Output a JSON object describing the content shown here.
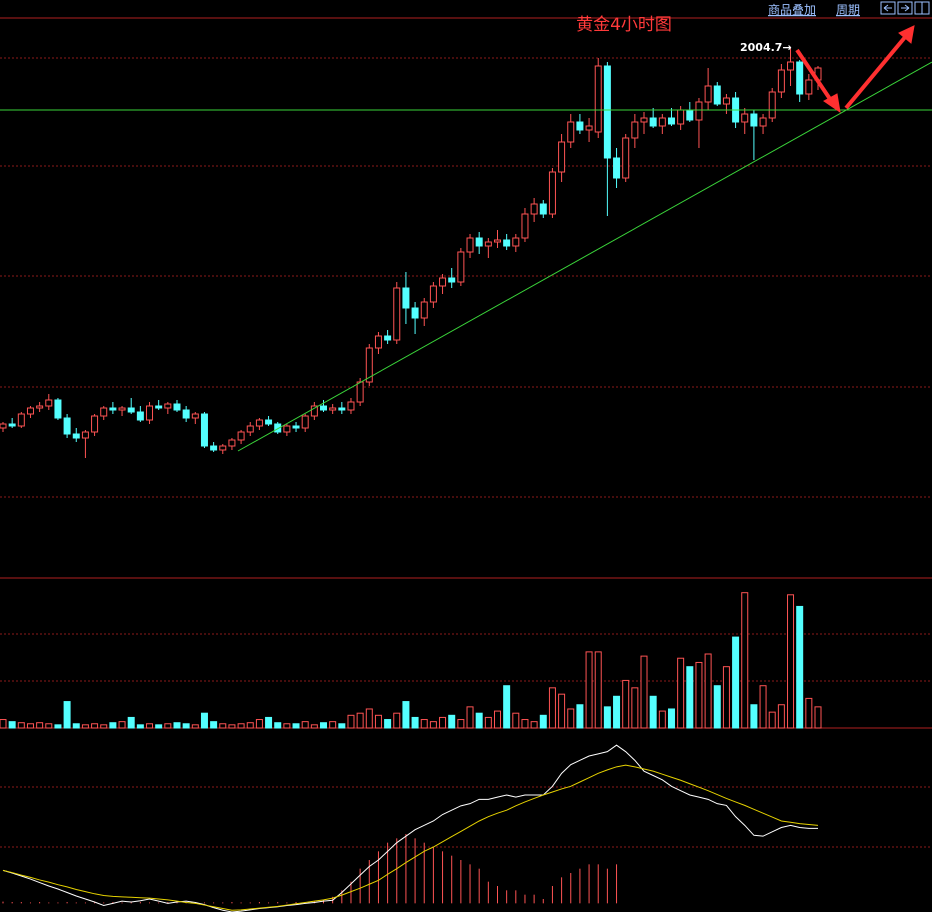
{
  "header": {
    "overlay_button": "商品叠加",
    "period_button": "周期"
  },
  "chart_data": [
    {
      "type": "candlestick",
      "title": "黄金4小时图",
      "high_label": "2004.7→",
      "up_color": "#ff5454",
      "down_color": "#54ffff",
      "ylim": [
        1740,
        2020
      ],
      "ohlc": [
        [
          1815,
          1818,
          1813,
          1817
        ],
        [
          1817,
          1820,
          1815,
          1816
        ],
        [
          1816,
          1823,
          1815,
          1822
        ],
        [
          1822,
          1826,
          1820,
          1825
        ],
        [
          1825,
          1828,
          1823,
          1826
        ],
        [
          1826,
          1832,
          1824,
          1829
        ],
        [
          1829,
          1830,
          1819,
          1820
        ],
        [
          1820,
          1822,
          1810,
          1812
        ],
        [
          1812,
          1815,
          1808,
          1810
        ],
        [
          1810,
          1814,
          1800,
          1813
        ],
        [
          1813,
          1822,
          1811,
          1821
        ],
        [
          1821,
          1826,
          1819,
          1825
        ],
        [
          1825,
          1828,
          1822,
          1824
        ],
        [
          1824,
          1826,
          1821,
          1825
        ],
        [
          1825,
          1830,
          1822,
          1823
        ],
        [
          1823,
          1826,
          1818,
          1819
        ],
        [
          1819,
          1828,
          1817,
          1826
        ],
        [
          1826,
          1829,
          1824,
          1825
        ],
        [
          1825,
          1828,
          1822,
          1827
        ],
        [
          1827,
          1829,
          1823,
          1824
        ],
        [
          1824,
          1826,
          1818,
          1820
        ],
        [
          1820,
          1823,
          1817,
          1822
        ],
        [
          1822,
          1823,
          1805,
          1806
        ],
        [
          1806,
          1808,
          1803,
          1804
        ],
        [
          1804,
          1807,
          1802,
          1806
        ],
        [
          1806,
          1810,
          1804,
          1809
        ],
        [
          1809,
          1814,
          1807,
          1813
        ],
        [
          1813,
          1818,
          1811,
          1816
        ],
        [
          1816,
          1820,
          1814,
          1819
        ],
        [
          1819,
          1821,
          1816,
          1817
        ],
        [
          1817,
          1818,
          1812,
          1813
        ],
        [
          1813,
          1817,
          1811,
          1816
        ],
        [
          1816,
          1818,
          1813,
          1815
        ],
        [
          1815,
          1822,
          1813,
          1821
        ],
        [
          1821,
          1828,
          1819,
          1826
        ],
        [
          1826,
          1829,
          1823,
          1824
        ],
        [
          1824,
          1827,
          1822,
          1825
        ],
        [
          1825,
          1828,
          1822,
          1824
        ],
        [
          1824,
          1830,
          1822,
          1828
        ],
        [
          1828,
          1840,
          1826,
          1838
        ],
        [
          1838,
          1857,
          1836,
          1855
        ],
        [
          1855,
          1863,
          1852,
          1861
        ],
        [
          1861,
          1864,
          1857,
          1859
        ],
        [
          1859,
          1888,
          1857,
          1885
        ],
        [
          1885,
          1893,
          1867,
          1875
        ],
        [
          1875,
          1878,
          1862,
          1870
        ],
        [
          1870,
          1880,
          1866,
          1878
        ],
        [
          1878,
          1888,
          1875,
          1886
        ],
        [
          1886,
          1892,
          1882,
          1890
        ],
        [
          1890,
          1895,
          1885,
          1888
        ],
        [
          1888,
          1905,
          1886,
          1903
        ],
        [
          1903,
          1912,
          1900,
          1910
        ],
        [
          1910,
          1913,
          1902,
          1906
        ],
        [
          1906,
          1910,
          1900,
          1908
        ],
        [
          1908,
          1914,
          1905,
          1909
        ],
        [
          1909,
          1912,
          1904,
          1906
        ],
        [
          1906,
          1912,
          1903,
          1910
        ],
        [
          1910,
          1925,
          1908,
          1922
        ],
        [
          1922,
          1930,
          1918,
          1927
        ],
        [
          1927,
          1929,
          1920,
          1922
        ],
        [
          1922,
          1945,
          1920,
          1943
        ],
        [
          1943,
          1962,
          1938,
          1958
        ],
        [
          1958,
          1972,
          1955,
          1968
        ],
        [
          1968,
          1972,
          1962,
          1964
        ],
        [
          1964,
          1970,
          1958,
          1966
        ],
        [
          1963,
          2000,
          1960,
          1996
        ],
        [
          1996,
          1998,
          1921,
          1950
        ],
        [
          1950,
          1955,
          1935,
          1940
        ],
        [
          1940,
          1962,
          1938,
          1960
        ],
        [
          1960,
          1972,
          1955,
          1968
        ],
        [
          1968,
          1973,
          1962,
          1970
        ],
        [
          1970,
          1975,
          1965,
          1966
        ],
        [
          1966,
          1972,
          1962,
          1970
        ],
        [
          1970,
          1975,
          1966,
          1967
        ],
        [
          1967,
          1976,
          1964,
          1974
        ],
        [
          1974,
          1978,
          1968,
          1969
        ],
        [
          1969,
          1980,
          1955,
          1978
        ],
        [
          1978,
          1995,
          1974,
          1986
        ],
        [
          1986,
          1988,
          1976,
          1977
        ],
        [
          1977,
          1982,
          1972,
          1980
        ],
        [
          1980,
          1983,
          1965,
          1968
        ],
        [
          1968,
          1975,
          1962,
          1972
        ],
        [
          1972,
          1974,
          1949,
          1966
        ],
        [
          1966,
          1972,
          1962,
          1970
        ],
        [
          1970,
          1985,
          1968,
          1983
        ],
        [
          1983,
          1997,
          1980,
          1994
        ],
        [
          1994,
          2004.7,
          1986,
          1998
        ],
        [
          1998,
          1999,
          1978,
          1982
        ],
        [
          1982,
          1992,
          1979,
          1989
        ],
        [
          1989,
          1996,
          1984,
          1995
        ]
      ]
    },
    {
      "type": "bar",
      "ylim": [
        0,
        140
      ],
      "values": [
        8,
        6,
        5,
        4,
        5,
        4,
        3,
        25,
        4,
        3,
        4,
        3,
        5,
        6,
        10,
        3,
        4,
        3,
        4,
        5,
        4,
        3,
        14,
        6,
        4,
        3,
        4,
        5,
        8,
        10,
        5,
        4,
        4,
        6,
        3,
        5,
        6,
        4,
        12,
        14,
        18,
        12,
        8,
        14,
        25,
        10,
        8,
        6,
        10,
        12,
        8,
        20,
        14,
        10,
        16,
        40,
        14,
        8,
        6,
        12,
        38,
        32,
        18,
        22,
        72,
        72,
        20,
        30,
        45,
        38,
        68,
        30,
        16,
        18,
        66,
        58,
        62,
        70,
        40,
        58,
        86,
        128,
        22,
        40,
        15,
        22,
        126,
        115,
        28,
        20
      ]
    },
    {
      "type": "line",
      "ylim": [
        -2,
        40
      ],
      "series": [
        {
          "color": "#ffffff",
          "values": [
            7.6,
            7,
            6.3,
            5.6,
            4.8,
            4,
            3.3,
            2.5,
            1.7,
            1,
            0.3,
            -0.5,
            0,
            0.5,
            0.3,
            0.6,
            1,
            0.5,
            0,
            0.3,
            0.5,
            0.2,
            -0.3,
            -1,
            -1.6,
            -2,
            -1.8,
            -1.5,
            -1.2,
            -1,
            -0.8,
            -0.5,
            -0.3,
            0,
            0.2,
            0.5,
            0.7,
            2.5,
            4.5,
            6.5,
            8.5,
            10,
            12,
            14,
            15.5,
            17,
            18,
            19,
            20.5,
            21.5,
            22.5,
            23,
            24,
            24,
            24.5,
            25,
            24.5,
            25,
            25,
            25,
            27,
            30,
            32,
            33,
            34,
            34.5,
            35,
            36.5,
            35,
            33,
            30.5,
            29.5,
            28.5,
            27,
            26,
            25,
            24.5,
            24,
            23,
            22.6,
            20,
            18,
            15.7,
            15.5,
            16.5,
            17.5,
            18,
            17.5,
            17.3,
            17.3
          ]
        },
        {
          "color": "#e6d200",
          "values": [
            7.6,
            7.1,
            6.5,
            6,
            5.4,
            4.9,
            4.3,
            3.8,
            3.2,
            2.7,
            2.2,
            1.8,
            1.6,
            1.5,
            1.4,
            1.3,
            1.2,
            1,
            0.8,
            0.5,
            0.2,
            0,
            -0.4,
            -0.8,
            -1.2,
            -1.6,
            -1.5,
            -1.3,
            -1.1,
            -0.9,
            -0.7,
            -0.4,
            -0.1,
            0.2,
            0.5,
            0.8,
            1.2,
            1.9,
            2.7,
            3.5,
            4.4,
            5.3,
            6.7,
            8,
            9.4,
            10.7,
            12,
            13,
            14.2,
            15.4,
            16.6,
            17.8,
            19,
            20,
            20.8,
            21.5,
            22.5,
            23.4,
            24.2,
            25,
            25.7,
            26.4,
            27,
            28,
            29,
            30,
            30.8,
            31.5,
            31.9,
            31.5,
            31,
            30.5,
            29.8,
            29.1,
            28.4,
            27.6,
            26.8,
            26,
            25.1,
            24.2,
            23.4,
            22.6,
            21.7,
            20.8,
            19.9,
            19,
            18.7,
            18.4,
            18.2,
            18
          ]
        }
      ],
      "hist_color": "#ff5454",
      "hist": [
        0.4,
        0.3,
        0.3,
        0.2,
        0.3,
        0.2,
        0.2,
        0.3,
        0.2,
        0.2,
        0.3,
        0.2,
        0.3,
        0.2,
        0.2,
        0.3,
        0.2,
        0.2,
        0.3,
        0.2,
        0.2,
        0.3,
        0.2,
        0.2,
        0.2,
        0.3,
        0.2,
        0.2,
        0.3,
        0.2,
        0.3,
        0.2,
        0.3,
        0.3,
        0.5,
        0.8,
        1.5,
        3,
        5,
        8,
        10,
        12,
        14,
        15,
        16,
        15,
        14,
        13,
        12,
        11,
        10,
        9,
        8,
        5,
        4,
        3,
        3,
        2,
        2,
        1,
        4,
        6,
        7,
        8,
        9,
        9,
        8,
        9,
        0,
        0,
        0,
        0,
        0,
        0,
        0,
        0,
        0,
        0,
        0,
        0,
        0,
        0,
        0,
        0,
        0,
        0,
        0,
        0,
        0,
        0
      ]
    }
  ]
}
